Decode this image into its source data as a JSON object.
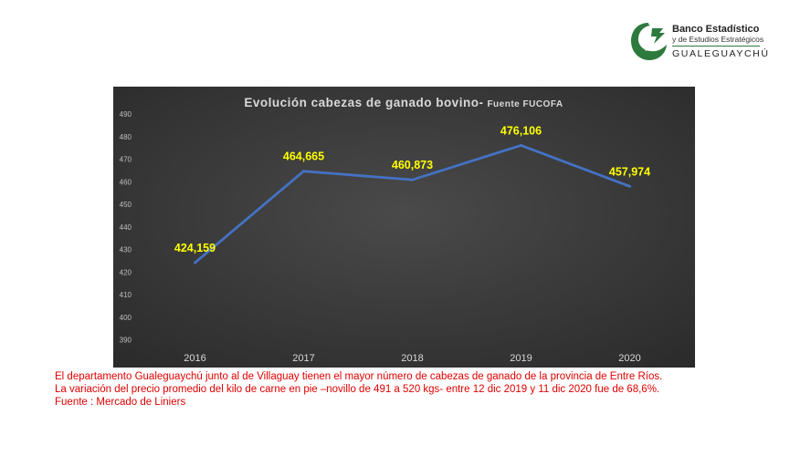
{
  "logo": {
    "line1": "Banco Estadístico",
    "line2": "y de Estudios Estratégicos",
    "line3": "GUALEGUAYCHÚ"
  },
  "colors": {
    "chart_bg": "#3a3a3a",
    "line": "#4472c4",
    "data_label": "#ffff00",
    "caption": "#e00000",
    "logo_green": "#2c7a3d"
  },
  "chart_data": {
    "type": "line",
    "title": "Evolución cabezas de ganado bovino-",
    "title_suffix": "Fuente FUCOFA",
    "categories": [
      "2016",
      "2017",
      "2018",
      "2019",
      "2020"
    ],
    "values": [
      424.159,
      464.665,
      460.873,
      476.106,
      457.974
    ],
    "data_labels": [
      "424,159",
      "464,665",
      "460,873",
      "476,106",
      "457,974"
    ],
    "y_ticks": [
      "390",
      "400",
      "410",
      "420",
      "430",
      "440",
      "450",
      "460",
      "470",
      "480",
      "490"
    ],
    "ylim": [
      385,
      490
    ],
    "grid": false,
    "legend": "none"
  },
  "caption": {
    "line1": "El departamento Gualeguaychú junto al de Villaguay tienen  el mayor número de cabezas de ganado de la provincia de Entre Ríos.",
    "line2": " La variación del precio promedio del kilo de carne en pie –novillo de 491 a 520 kgs- entre 12 dic 2019 y 11 dic 2020 fue de 68,6%.",
    "line3": "Fuente : Mercado de Liniers"
  }
}
